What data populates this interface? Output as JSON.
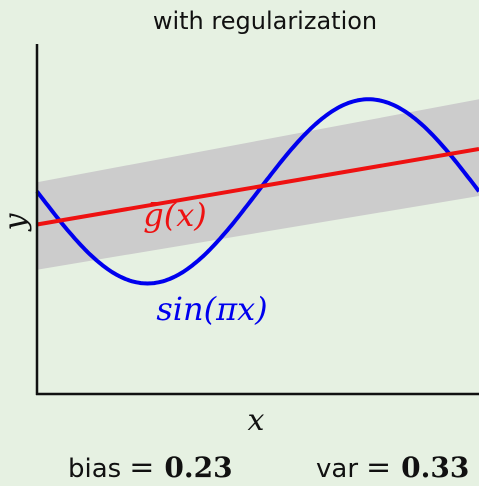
{
  "chart_data": {
    "type": "line",
    "title": "with regularization",
    "xlabel": "x",
    "ylabel": "y",
    "xlim": [
      -1,
      1
    ],
    "ylim": [
      -2.2,
      1.6
    ],
    "grid": false,
    "band": {
      "x": [
        -1,
        1
      ],
      "upper": [
        0.1,
        1.0
      ],
      "lower": [
        -0.85,
        -0.05
      ],
      "color": "#cccccc"
    },
    "series": [
      {
        "name": "sin(πx)",
        "function": "sin(pi*x)",
        "x": [
          -1.0,
          -0.9,
          -0.8,
          -0.7,
          -0.6,
          -0.5,
          -0.4,
          -0.3,
          -0.2,
          -0.1,
          0.0,
          0.1,
          0.2,
          0.3,
          0.4,
          0.5,
          0.6,
          0.7,
          0.8,
          0.9,
          1.0
        ],
        "y": [
          0.0,
          -0.31,
          -0.59,
          -0.81,
          -0.95,
          -1.0,
          -0.95,
          -0.81,
          -0.59,
          -0.31,
          0.0,
          0.31,
          0.59,
          0.81,
          0.95,
          1.0,
          0.95,
          0.81,
          0.59,
          0.31,
          0.0
        ],
        "color": "#0000ee"
      },
      {
        "name": "ḡ(x)",
        "x": [
          -1,
          1
        ],
        "y": [
          -0.36,
          0.46
        ],
        "color": "#ee1111"
      }
    ],
    "annotations": {
      "gbar_label": "ḡ(x)",
      "sin_label": "sin(πx)"
    },
    "stats": {
      "bias_label": "bias",
      "bias_value": "0.23",
      "var_label": "var",
      "var_value": "0.33",
      "equals": "="
    }
  }
}
